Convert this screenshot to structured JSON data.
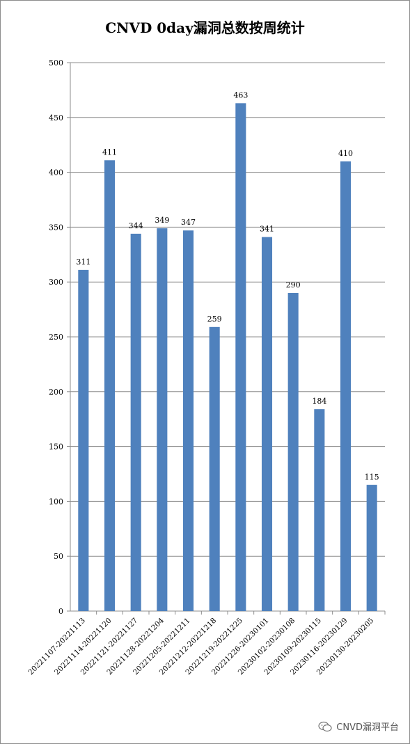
{
  "chart_data": {
    "type": "bar",
    "title": "CNVD 0day漏洞总数按周统计",
    "xlabel": "",
    "ylabel": "",
    "ylim": [
      0,
      500
    ],
    "yticks": [
      0,
      50,
      100,
      150,
      200,
      250,
      300,
      350,
      400,
      450,
      500
    ],
    "grid": true,
    "legend": "none",
    "bar_color": "#4f81bd",
    "categories": [
      "20221107-20221113",
      "20221114-20221120",
      "20221121-20221127",
      "20221128-20221204",
      "20221205-20221211",
      "20221212-20221218",
      "20221219-20221225",
      "20221226-20230101",
      "20230102-20230108",
      "20230109-20230115",
      "20230116-20230129",
      "20230130-20230205"
    ],
    "values": [
      311,
      411,
      344,
      349,
      347,
      259,
      463,
      341,
      290,
      184,
      410,
      115
    ]
  },
  "watermark": {
    "text": "CNVD漏洞平台",
    "icon": "wechat-icon"
  }
}
